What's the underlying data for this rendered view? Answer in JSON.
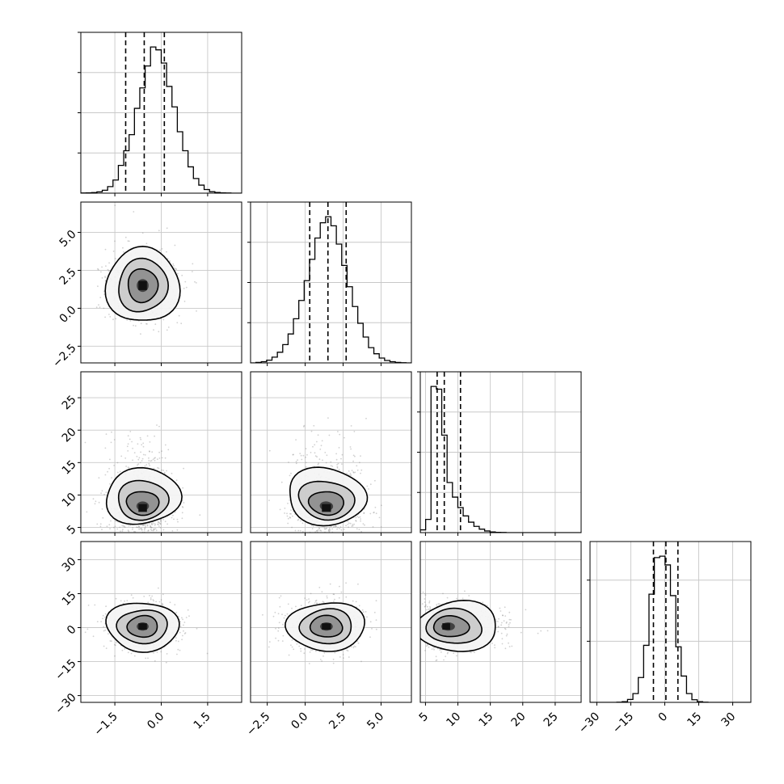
{
  "chart_data": {
    "type": "corner",
    "grid": true,
    "parameters": 4,
    "axes": [
      {
        "lim": [
          -2.6,
          2.6
        ],
        "ticks": [
          -1.5,
          0,
          1.5
        ],
        "tick_labels": [
          "−1.5",
          "0.0",
          "1.5"
        ]
      },
      {
        "lim": [
          -3.6,
          7.0
        ],
        "ticks": [
          -2.5,
          0,
          2.5,
          5
        ],
        "tick_labels": [
          "−2.5",
          "0.0",
          "2.5",
          "5.0"
        ]
      },
      {
        "lim": [
          4.2,
          29.0
        ],
        "ticks": [
          5,
          10,
          15,
          20,
          25
        ],
        "tick_labels": [
          "5",
          "10",
          "15",
          "20",
          "25"
        ]
      },
      {
        "lim": [
          -33,
          38
        ],
        "ticks": [
          -30,
          -15,
          0,
          15,
          30
        ],
        "tick_labels": [
          "−30",
          "−15",
          "0",
          "15",
          "30"
        ]
      }
    ],
    "quantiles": [
      [
        -1.15,
        -0.55,
        0.1
      ],
      [
        0.3,
        1.5,
        2.7
      ],
      [
        6.8,
        7.9,
        10.4
      ],
      [
        -5.0,
        0.5,
        5.8
      ]
    ],
    "histograms": [
      {
        "bins": [
          -2.6,
          2.6
        ],
        "counts": [
          1,
          2,
          4,
          9,
          20,
          45,
          90,
          190,
          290,
          400,
          580,
          720,
          870,
          1000,
          980,
          890,
          730,
          590,
          420,
          290,
          180,
          100,
          55,
          25,
          10,
          5,
          2,
          1,
          0,
          0
        ]
      },
      {
        "bins": [
          -3.6,
          7.0
        ],
        "counts": [
          0,
          3,
          8,
          18,
          38,
          70,
          120,
          190,
          290,
          410,
          540,
          680,
          820,
          920,
          960,
          900,
          780,
          640,
          500,
          370,
          260,
          170,
          100,
          60,
          32,
          16,
          8,
          3,
          1,
          0
        ]
      },
      {
        "bins": [
          4.2,
          29.0
        ],
        "counts": [
          20,
          95,
          1050,
          1030,
          700,
          360,
          255,
          180,
          120,
          75,
          45,
          25,
          12,
          5,
          2,
          1,
          0,
          0,
          0,
          0,
          0,
          0,
          0,
          0,
          0,
          0,
          0,
          0,
          0,
          0
        ]
      },
      {
        "bins": [
          -33,
          38
        ],
        "counts": [
          0,
          0,
          0,
          0,
          0,
          1,
          5,
          20,
          60,
          170,
          390,
          740,
          990,
          1000,
          940,
          730,
          380,
          180,
          60,
          18,
          5,
          1,
          0,
          0,
          0,
          0,
          0,
          0,
          0,
          0
        ]
      }
    ],
    "pairs": [
      {
        "row": 1,
        "col": 0,
        "center": [
          -0.6,
          1.5
        ],
        "spread": [
          0.55,
          1.2
        ],
        "tilt": 0
      },
      {
        "row": 2,
        "col": 0,
        "center": [
          -0.6,
          8.0
        ],
        "spread": [
          0.55,
          2.4
        ],
        "tilt": 0
      },
      {
        "row": 2,
        "col": 1,
        "center": [
          1.4,
          8.0
        ],
        "spread": [
          1.2,
          2.4
        ],
        "tilt": 0.1
      },
      {
        "row": 3,
        "col": 0,
        "center": [
          -0.6,
          0.5
        ],
        "spread": [
          0.55,
          5.2
        ],
        "tilt": 0
      },
      {
        "row": 3,
        "col": 1,
        "center": [
          1.4,
          0.5
        ],
        "spread": [
          1.2,
          5.2
        ],
        "tilt": 0
      },
      {
        "row": 3,
        "col": 2,
        "center": [
          8.2,
          0.5
        ],
        "spread": [
          2.4,
          5.2
        ],
        "tilt": 0
      }
    ]
  }
}
